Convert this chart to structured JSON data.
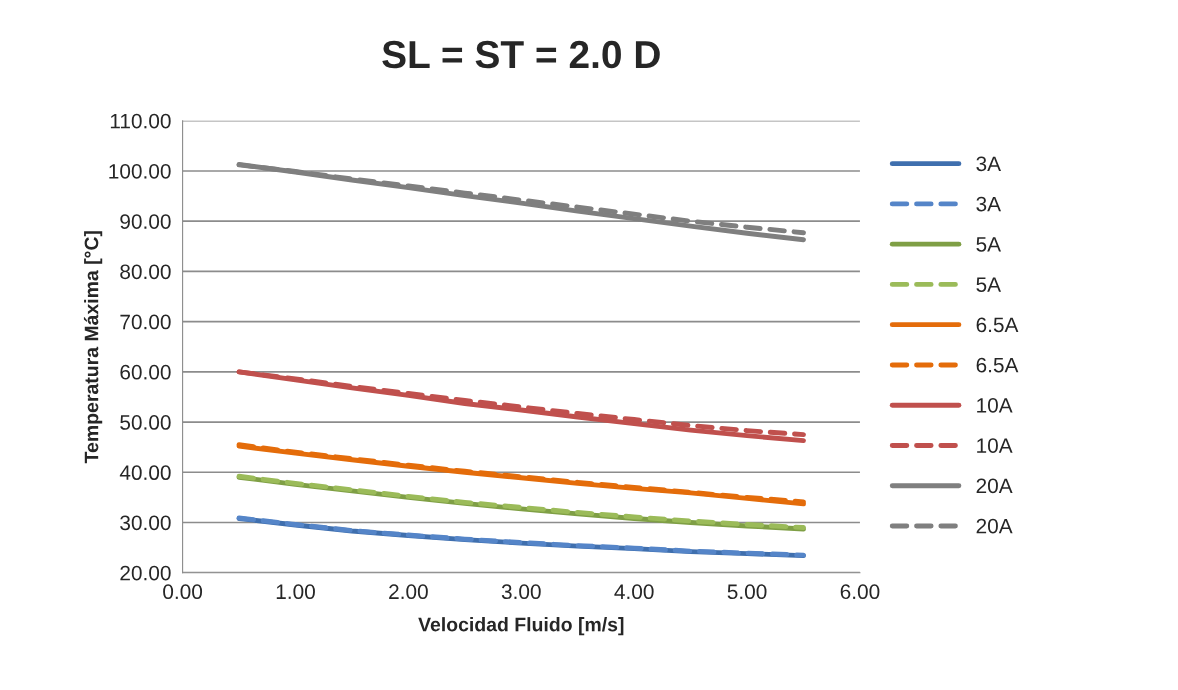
{
  "chart_data": {
    "type": "line",
    "title": "SL = ST = 2.0 D",
    "xlabel": "Velocidad Fluido [m/s]",
    "ylabel": "Temperatura Máxima [°C]",
    "x": [
      0.5,
      1.0,
      1.5,
      2.0,
      2.5,
      3.0,
      3.5,
      4.0,
      4.5,
      5.0,
      5.5
    ],
    "series": [
      {
        "name": "3A",
        "color": "#3f6fae",
        "line_style": "solid",
        "values": [
          30.8,
          29.5,
          28.3,
          27.4,
          26.6,
          25.9,
          25.3,
          24.8,
          24.2,
          23.8,
          23.4
        ]
      },
      {
        "name": "3A",
        "color": "#5585c8",
        "line_style": "dashed",
        "values": [
          30.9,
          29.6,
          28.4,
          27.5,
          26.7,
          26.0,
          25.4,
          24.9,
          24.3,
          23.9,
          23.5
        ]
      },
      {
        "name": "5A",
        "color": "#7f9f45",
        "line_style": "solid",
        "values": [
          39.0,
          37.6,
          36.3,
          35.0,
          33.8,
          32.7,
          31.7,
          30.8,
          30.0,
          29.3,
          28.7
        ]
      },
      {
        "name": "5A",
        "color": "#9bbb59",
        "line_style": "dashed",
        "values": [
          39.2,
          37.8,
          36.5,
          35.2,
          34.0,
          33.0,
          32.0,
          31.1,
          30.3,
          29.6,
          29.0
        ]
      },
      {
        "name": "6.5A",
        "color": "#e46c0a",
        "line_style": "solid",
        "values": [
          45.2,
          43.8,
          42.5,
          41.2,
          40.0,
          38.9,
          37.8,
          36.8,
          35.9,
          34.8,
          33.7
        ]
      },
      {
        "name": "6.5A",
        "color": "#e46c0a",
        "line_style": "dashed",
        "values": [
          45.5,
          44.0,
          42.7,
          41.4,
          40.2,
          39.1,
          38.0,
          37.0,
          36.0,
          35.0,
          34.1
        ]
      },
      {
        "name": "10A",
        "color": "#c0504d",
        "line_style": "solid",
        "values": [
          60.0,
          58.4,
          56.8,
          55.3,
          53.7,
          52.4,
          51.0,
          49.7,
          48.4,
          47.3,
          46.3
        ]
      },
      {
        "name": "10A",
        "color": "#c0504d",
        "line_style": "dashed",
        "values": [
          60.0,
          58.6,
          57.1,
          55.7,
          54.3,
          53.0,
          51.7,
          50.5,
          49.3,
          48.3,
          47.5
        ]
      },
      {
        "name": "20A",
        "color": "#7f7f7f",
        "line_style": "solid",
        "values": [
          101.3,
          99.8,
          98.2,
          96.7,
          95.1,
          93.6,
          92.0,
          90.5,
          89.0,
          87.6,
          86.3
        ]
      },
      {
        "name": "20A",
        "color": "#7f7f7f",
        "line_style": "dashed",
        "values": [
          101.2,
          99.9,
          98.4,
          97.0,
          95.6,
          94.2,
          92.8,
          91.4,
          90.0,
          88.8,
          87.7
        ]
      }
    ],
    "xlim": [
      0,
      6
    ],
    "xticks": [
      {
        "value": 0,
        "label": "0.00"
      },
      {
        "value": 1,
        "label": "1.00"
      },
      {
        "value": 2,
        "label": "2.00"
      },
      {
        "value": 3,
        "label": "3.00"
      },
      {
        "value": 4,
        "label": "4.00"
      },
      {
        "value": 5,
        "label": "5.00"
      },
      {
        "value": 6,
        "label": "6.00"
      }
    ],
    "ylim": [
      20,
      110
    ],
    "yticks": [
      {
        "value": 20,
        "label": "20.00"
      },
      {
        "value": 30,
        "label": "30.00"
      },
      {
        "value": 40,
        "label": "40.00"
      },
      {
        "value": 50,
        "label": "50.00"
      },
      {
        "value": 60,
        "label": "60.00"
      },
      {
        "value": 70,
        "label": "70.00"
      },
      {
        "value": 80,
        "label": "80.00"
      },
      {
        "value": 90,
        "label": "90.00"
      },
      {
        "value": 100,
        "label": "100.00"
      },
      {
        "value": 110,
        "label": "110.00"
      }
    ],
    "grid": "y",
    "legend": "right"
  }
}
